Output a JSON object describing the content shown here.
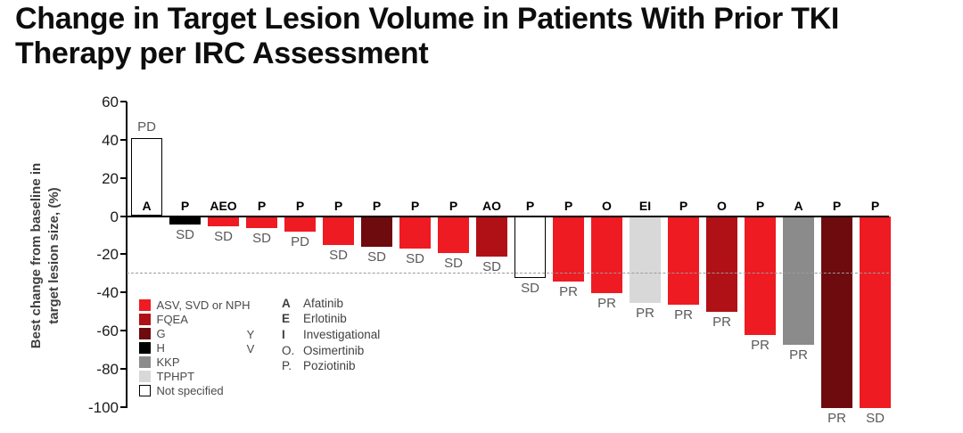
{
  "page": {
    "title_line1": "Change in Target Lesion Volume in Patients With Prior TKI",
    "title_line2": "Therapy per IRC Assessment"
  },
  "chart_data": {
    "type": "bar",
    "subtype": "waterfall",
    "title": "Change in Target Lesion Volume in Patients With Prior TKI Therapy per IRC Assessment",
    "ylabel": "Best change from baseline in target lesion size, (%)",
    "ylabel_line1": "Best change from baseline in",
    "ylabel_line2": "target lesion size, (%)",
    "ylim": [
      -100,
      60
    ],
    "yticks": [
      60,
      40,
      20,
      0,
      -20,
      -40,
      -60,
      -80,
      -100
    ],
    "grid": false,
    "reference_line_y": -30,
    "legend_position": "bottom-left inside plot",
    "bars": [
      {
        "value": 41,
        "color": "not_specified",
        "prior_tki": "A",
        "response": "PD"
      },
      {
        "value": -4,
        "color": "H",
        "prior_tki": "P",
        "response": "SD"
      },
      {
        "value": -5,
        "color": "ASV_SVD_NPH",
        "prior_tki": "AEO",
        "response": "SD"
      },
      {
        "value": -6,
        "color": "ASV_SVD_NPH",
        "prior_tki": "P",
        "response": "SD"
      },
      {
        "value": -8,
        "color": "ASV_SVD_NPH",
        "prior_tki": "P",
        "response": "PD"
      },
      {
        "value": -15,
        "color": "ASV_SVD_NPH",
        "prior_tki": "P",
        "response": "SD"
      },
      {
        "value": -16,
        "color": "G",
        "prior_tki": "P",
        "response": "SD"
      },
      {
        "value": -17,
        "color": "ASV_SVD_NPH",
        "prior_tki": "P",
        "response": "SD"
      },
      {
        "value": -19,
        "color": "ASV_SVD_NPH",
        "prior_tki": "P",
        "response": "SD"
      },
      {
        "value": -21,
        "color": "FQEA",
        "prior_tki": "AO",
        "response": "SD"
      },
      {
        "value": -32,
        "color": "not_specified",
        "prior_tki": "P",
        "response": "SD"
      },
      {
        "value": -34,
        "color": "ASV_SVD_NPH",
        "prior_tki": "P",
        "response": "PR"
      },
      {
        "value": -40,
        "color": "ASV_SVD_NPH",
        "prior_tki": "O",
        "response": "PR"
      },
      {
        "value": -45,
        "color": "TPHPT",
        "prior_tki": "EI",
        "response": "PR"
      },
      {
        "value": -46,
        "color": "ASV_SVD_NPH",
        "prior_tki": "P",
        "response": "PR"
      },
      {
        "value": -50,
        "color": "FQEA",
        "prior_tki": "O",
        "response": "PR"
      },
      {
        "value": -62,
        "color": "ASV_SVD_NPH",
        "prior_tki": "P",
        "response": "PR"
      },
      {
        "value": -67,
        "color": "KKP",
        "prior_tki": "A",
        "response": "PR"
      },
      {
        "value": -100,
        "color": "G",
        "prior_tki": "P",
        "response": "PR"
      },
      {
        "value": -100,
        "color": "ASV_SVD_NPH",
        "prior_tki": "P",
        "response": "SD"
      }
    ],
    "colors": {
      "ASV_SVD_NPH": "#EE1B22",
      "FQEA": "#B01116",
      "G": "#6E0B0E",
      "H": "#000000",
      "KKP": "#8B8B8B",
      "TPHPT": "#D8D8D8",
      "not_specified": "#FFFFFF"
    },
    "color_legend": [
      {
        "key": "ASV_SVD_NPH",
        "label": "ASV, SVD or NPH"
      },
      {
        "key": "FQEA",
        "label": "FQEA"
      },
      {
        "key": "G",
        "label": "G"
      },
      {
        "key": "H",
        "label": "H"
      },
      {
        "key": "KKP",
        "label": "KKP"
      },
      {
        "key": "TPHPT",
        "label": "TPHPT"
      },
      {
        "key": "not_specified",
        "label": "Not specified"
      }
    ],
    "stray_letters": [
      "Y",
      "V"
    ],
    "treatment_legend": [
      {
        "key": "A",
        "label": "Afatinib"
      },
      {
        "key": "E",
        "label": "Erlotinib"
      },
      {
        "key": "I",
        "label": "Investigational"
      },
      {
        "key": "O.",
        "label": "Osimertinib"
      },
      {
        "key": "P.",
        "label": "Poziotinib"
      }
    ]
  }
}
